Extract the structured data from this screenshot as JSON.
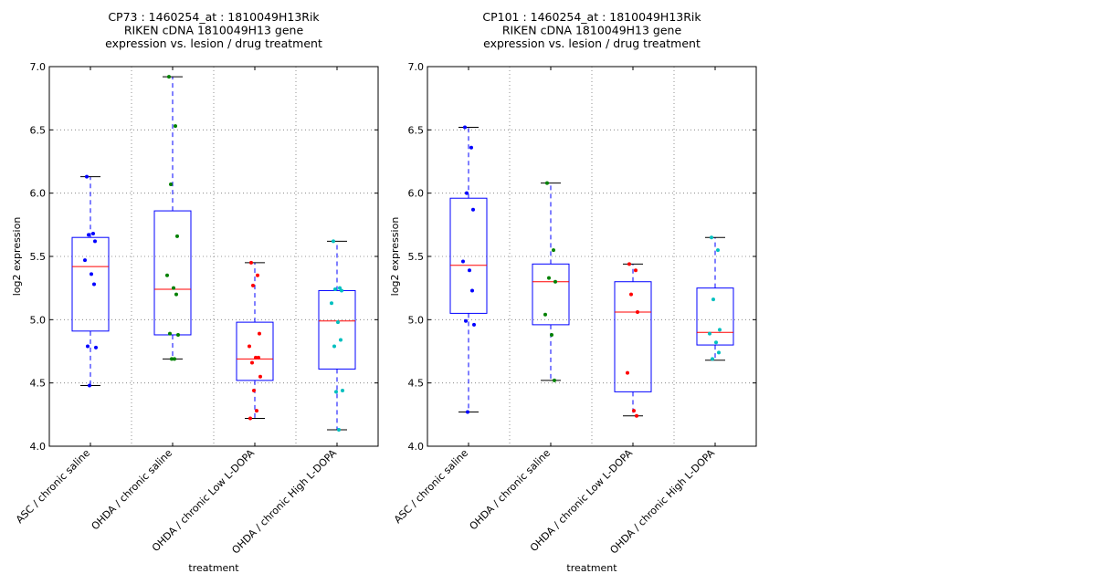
{
  "chart_data": [
    {
      "type": "box",
      "title_lines": [
        "CP73 : 1460254_at : 1810049H13Rik",
        "RIKEN cDNA 1810049H13 gene",
        "expression vs. lesion / drug treatment"
      ],
      "xlabel": "treatment",
      "ylabel": "log2 expression",
      "ylim": [
        4.0,
        7.0
      ],
      "yticks": [
        "4.0",
        "4.5",
        "5.0",
        "5.5",
        "6.0",
        "6.5",
        "7.0"
      ],
      "grid": true,
      "categories": [
        "ASC / chronic saline",
        "OHDA / chronic saline",
        "OHDA / chronic Low L-DOPA",
        "OHDA / chronic High L-DOPA"
      ],
      "series": [
        {
          "color": "#0000ff",
          "box": {
            "whislo": 4.48,
            "q1": 4.91,
            "med": 5.42,
            "q3": 5.65,
            "whishi": 6.13
          },
          "points": [
            6.13,
            5.68,
            5.67,
            5.62,
            5.47,
            5.36,
            5.28,
            4.79,
            4.78,
            4.48
          ]
        },
        {
          "color": "#008000",
          "box": {
            "whislo": 4.69,
            "q1": 4.88,
            "med": 5.24,
            "q3": 5.86,
            "whishi": 6.92
          },
          "points": [
            6.92,
            6.53,
            6.07,
            5.66,
            5.35,
            5.25,
            5.2,
            4.89,
            4.88,
            4.69,
            4.69
          ]
        },
        {
          "color": "#ff0000",
          "box": {
            "whislo": 4.22,
            "q1": 4.52,
            "med": 4.69,
            "q3": 4.98,
            "whishi": 5.45
          },
          "points": [
            5.45,
            5.35,
            5.27,
            4.89,
            4.79,
            4.7,
            4.7,
            4.66,
            4.55,
            4.44,
            4.28,
            4.22
          ]
        },
        {
          "color": "#00bfbf",
          "box": {
            "whislo": 4.13,
            "q1": 4.61,
            "med": 4.99,
            "q3": 5.23,
            "whishi": 5.62
          },
          "points": [
            5.62,
            5.25,
            5.24,
            5.23,
            5.13,
            4.98,
            4.84,
            4.79,
            4.44,
            4.43,
            4.13
          ]
        }
      ]
    },
    {
      "type": "box",
      "title_lines": [
        "CP101 : 1460254_at : 1810049H13Rik",
        "RIKEN cDNA 1810049H13 gene",
        "expression vs. lesion / drug treatment"
      ],
      "xlabel": "treatment",
      "ylabel": "log2 expression",
      "ylim": [
        4.0,
        7.0
      ],
      "yticks": [
        "4.0",
        "4.5",
        "5.0",
        "5.5",
        "6.0",
        "6.5",
        "7.0"
      ],
      "grid": true,
      "categories": [
        "ASC / chronic saline",
        "OHDA / chronic saline",
        "OHDA / chronic Low L-DOPA",
        "OHDA / chronic High L-DOPA"
      ],
      "series": [
        {
          "color": "#0000ff",
          "box": {
            "whislo": 4.27,
            "q1": 5.05,
            "med": 5.43,
            "q3": 5.96,
            "whishi": 6.52
          },
          "points": [
            6.52,
            6.36,
            6.0,
            5.87,
            5.46,
            5.39,
            5.23,
            4.99,
            4.96,
            4.27
          ]
        },
        {
          "color": "#008000",
          "box": {
            "whislo": 4.52,
            "q1": 4.96,
            "med": 5.3,
            "q3": 5.44,
            "whishi": 6.08
          },
          "points": [
            6.08,
            5.55,
            5.33,
            5.3,
            5.04,
            4.88,
            4.52
          ]
        },
        {
          "color": "#ff0000",
          "box": {
            "whislo": 4.24,
            "q1": 4.43,
            "med": 5.06,
            "q3": 5.3,
            "whishi": 5.44
          },
          "points": [
            5.44,
            5.39,
            5.2,
            5.06,
            4.58,
            4.28,
            4.24
          ]
        },
        {
          "color": "#00bfbf",
          "box": {
            "whislo": 4.68,
            "q1": 4.8,
            "med": 4.9,
            "q3": 5.25,
            "whishi": 5.65
          },
          "points": [
            5.65,
            5.55,
            5.16,
            4.92,
            4.89,
            4.82,
            4.74,
            4.69
          ]
        }
      ]
    }
  ]
}
